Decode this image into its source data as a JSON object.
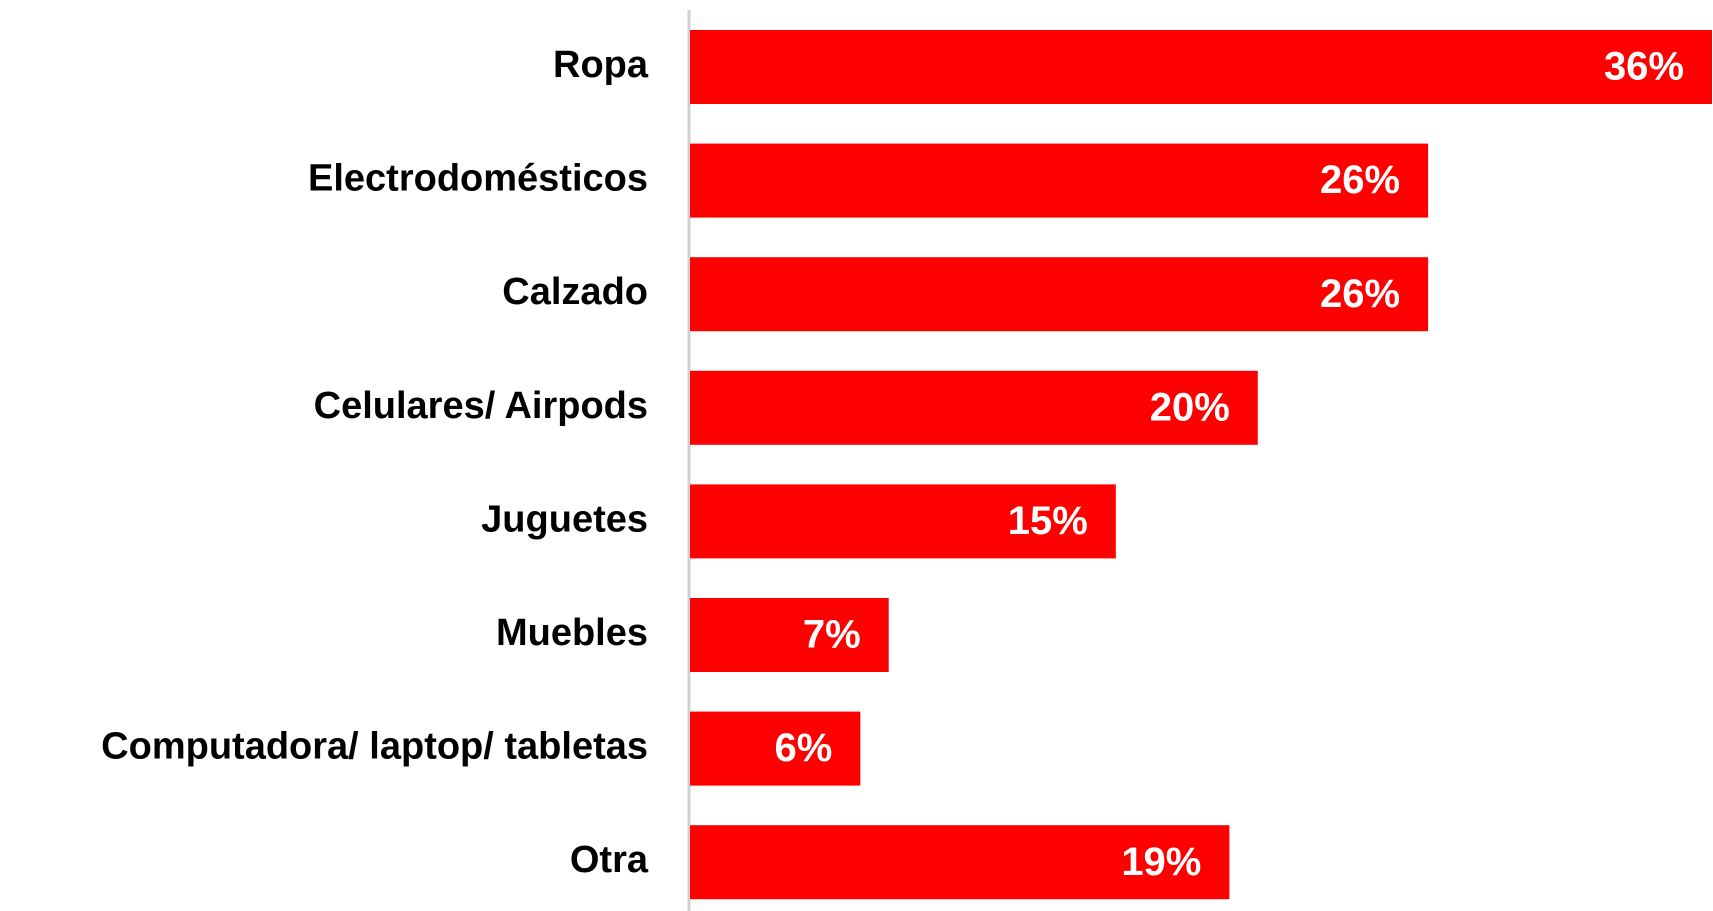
{
  "chart_data": {
    "type": "bar",
    "orientation": "horizontal",
    "categories": [
      "Ropa",
      "Electrodomésticos",
      "Calzado",
      "Celulares/ Airpods",
      "Juguetes",
      "Muebles",
      "Computadora/ laptop/ tabletas",
      "Otra"
    ],
    "values": [
      36,
      26,
      26,
      20,
      15,
      7,
      6,
      19
    ],
    "value_labels": [
      "36%",
      "26%",
      "26%",
      "20%",
      "15%",
      "7%",
      "6%",
      "19%"
    ],
    "color": "#ff0000"
  }
}
